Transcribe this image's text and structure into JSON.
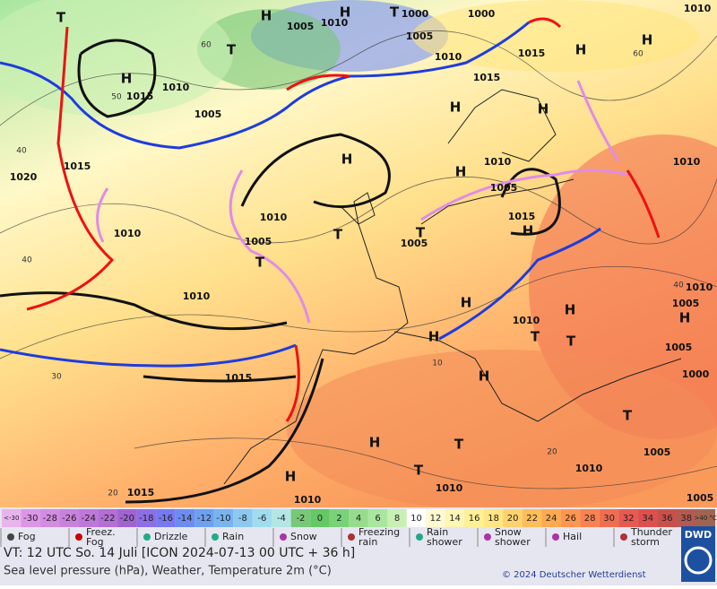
{
  "map": {
    "pressure_labels": [
      "H",
      "T",
      "1000",
      "1000",
      "1010",
      "1010",
      "1005",
      "T",
      "H",
      "T",
      "H",
      "1015",
      "1010",
      "1005",
      "1005",
      "1010",
      "1015",
      "1015",
      "H",
      "H",
      "H",
      "H",
      "H",
      "H",
      "1010",
      "1005",
      "1015",
      "1020",
      "1010",
      "1010",
      "1015",
      "H",
      "T",
      "1005",
      "1010",
      "1005",
      "T",
      "T",
      "1010",
      "H",
      "H",
      "1005",
      "1010",
      "H",
      "1010",
      "T",
      "T",
      "H",
      "1005",
      "1000",
      "H",
      "1015",
      "H",
      "T",
      "T",
      "H",
      "1010",
      "1010",
      "1005",
      "T",
      "1005",
      "1015",
      "1010"
    ],
    "grid_labels": [
      "60",
      "50",
      "40",
      "40",
      "30",
      "20",
      "60",
      "40",
      "20",
      "10"
    ]
  },
  "legend": {
    "temperature_labels": [
      "<-30",
      "-30",
      "-28",
      "-26",
      "-24",
      "-22",
      "-20",
      "-18",
      "-16",
      "-14",
      "-12",
      "-10",
      "-8",
      "-6",
      "-4",
      "-2",
      "0",
      "2",
      "4",
      "6",
      "8",
      "10",
      "12",
      "14",
      "16",
      "18",
      "20",
      "22",
      "24",
      "26",
      "28",
      "30",
      "32",
      "34",
      "36",
      "38",
      ">40 °C"
    ],
    "temperature_colors": [
      "#e8b4ec",
      "#dc96e6",
      "#d28ce0",
      "#c882dc",
      "#be78d8",
      "#b46ed4",
      "#a064d0",
      "#8c6ee6",
      "#7878f0",
      "#6e8cf0",
      "#6ea0f0",
      "#78b4f0",
      "#8cc8f0",
      "#a0dcf0",
      "#b4e6e6",
      "#78c878",
      "#64c864",
      "#78d278",
      "#96dc8c",
      "#aae6a0",
      "#c8f0b4",
      "#ffffff",
      "#fffad2",
      "#fff5b4",
      "#fff096",
      "#ffe682",
      "#ffd26e",
      "#ffbe5a",
      "#ffaa50",
      "#ff9650",
      "#fa8250",
      "#f06e50",
      "#e65a50",
      "#dc5050",
      "#c8504b",
      "#b45a50",
      "#a06450"
    ],
    "weather": [
      "Fog",
      "Freez. Fog",
      "Drizzle",
      "Rain",
      "Snow",
      "Freezing rain",
      "Rain shower",
      "Snow shower",
      "Hail",
      "Thunder storm"
    ]
  },
  "footer": {
    "valid_time": "VT: 12 UTC So.  14 Juli [ICON 2024-07-13  00 UTC + 36 h]",
    "description": "Sea level pressure (hPa), Weather, Temperature 2m (°C)",
    "copyright": "© 2024 Deutscher Wetterdienst",
    "logo": "DWD"
  }
}
